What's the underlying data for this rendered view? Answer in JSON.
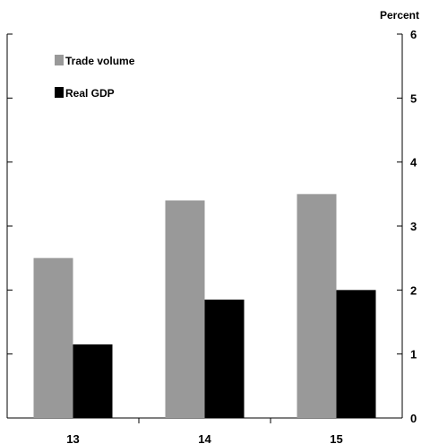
{
  "chart_data": {
    "type": "bar",
    "categories": [
      "13",
      "14",
      "15"
    ],
    "series": [
      {
        "name": "Trade volume",
        "values": [
          2.5,
          3.4,
          3.5
        ],
        "color": "#999999"
      },
      {
        "name": "Real GDP",
        "values": [
          1.15,
          1.85,
          2.0
        ],
        "color": "#000000"
      }
    ],
    "title": "",
    "xlabel": "",
    "ylabel": "Percent",
    "ylim": [
      0,
      6
    ],
    "yticks": [
      "0",
      "1",
      "2",
      "3",
      "4",
      "5",
      "6"
    ],
    "y_axis_side": "right",
    "grid": false,
    "legend_position": "top-left"
  }
}
